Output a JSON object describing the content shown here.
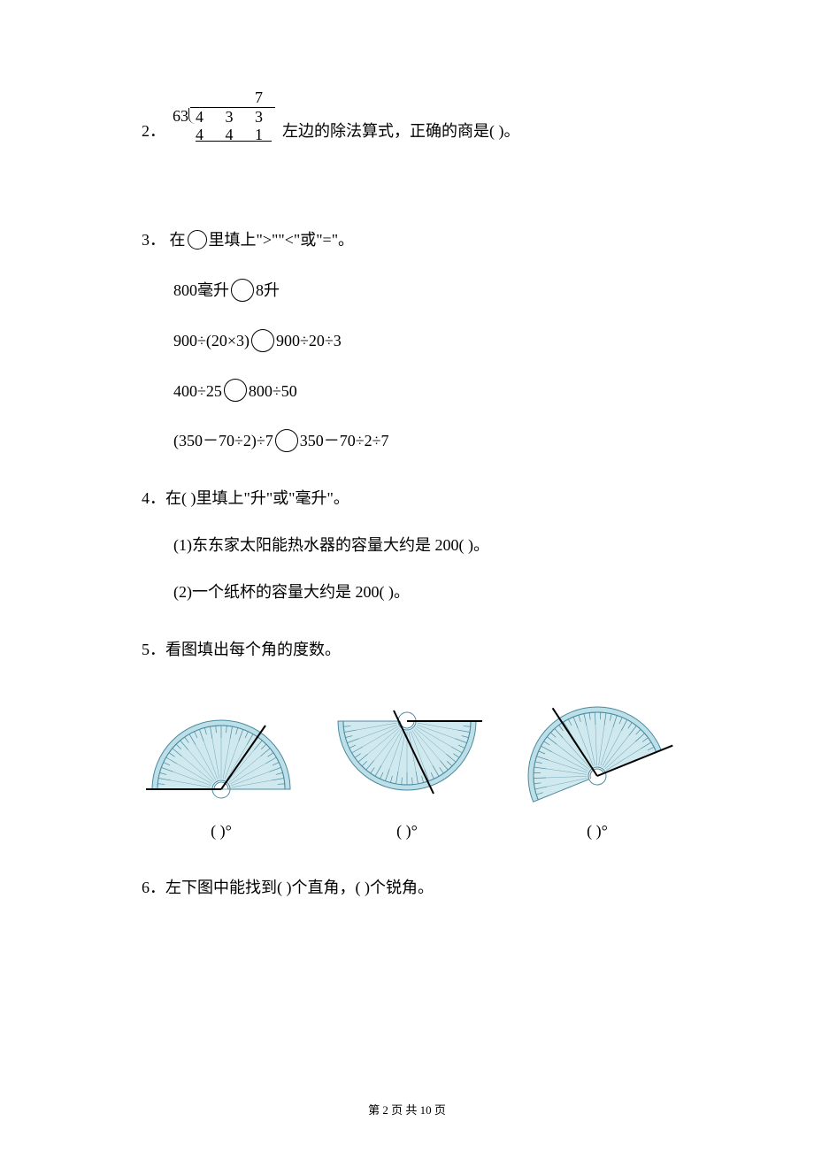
{
  "q2": {
    "number": "2．",
    "longdiv": {
      "quotient": "7",
      "divisor": "63",
      "dividend": "4 3 3",
      "sub": "4 4 1"
    },
    "text": "左边的除法算式，正确的商是(       )。"
  },
  "q3": {
    "number": "3．",
    "prompt_pre": "在",
    "prompt_post": "里填上\">\"\"<\"或\"=\"。",
    "lines": [
      {
        "left_a": "800",
        "left_b": "毫升",
        "right_a": "8",
        "right_b": "升"
      },
      {
        "full_left": "900÷(20×3)",
        "full_right": "900÷20÷3"
      },
      {
        "full_left": "400÷25",
        "full_right": "800÷50"
      },
      {
        "full_left": "(350－70÷2)÷7",
        "full_right": "350－70÷2÷7"
      }
    ]
  },
  "q4": {
    "number": "4．",
    "prompt": "在(      )里填上\"升\"或\"毫升\"。",
    "items": [
      "(1)东东家太阳能热水器的容量大约是 200(      )。",
      "(2)一个纸杯的容量大约是 200(      )。"
    ]
  },
  "q5": {
    "number": "5．",
    "prompt": "看图填出每个角的度数。",
    "label": "(        )°",
    "protractor": {
      "fill": "#bcdfe8",
      "stroke": "#4b8aa0",
      "tick": "#4b8aa0",
      "ray": "#000000"
    }
  },
  "q6": {
    "number": "6．",
    "text": "左下图中能找到(      )个直角，(      )个锐角。"
  },
  "footer": "第 2 页 共 10 页"
}
